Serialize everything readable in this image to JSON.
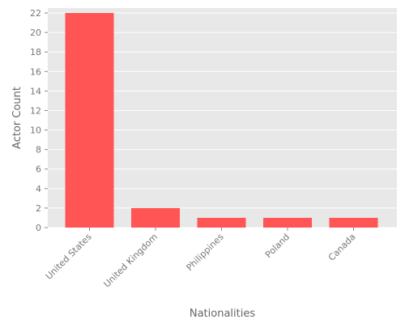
{
  "chart_data": {
    "type": "bar",
    "categories": [
      "United States",
      "United Kingdom",
      "Philippines",
      "Poland",
      "Canada"
    ],
    "values": [
      22,
      2,
      1,
      1,
      1
    ],
    "title": "",
    "xlabel": "Nationalities",
    "ylabel": "Actor Count",
    "ylim": [
      0,
      22.5
    ],
    "yticks": [
      0,
      2,
      4,
      6,
      8,
      10,
      12,
      14,
      16,
      18,
      20,
      22
    ],
    "grid": true,
    "bar_color": "#ff5555",
    "plot_background": "#e8e8e8",
    "grid_color": "#ffffff"
  }
}
